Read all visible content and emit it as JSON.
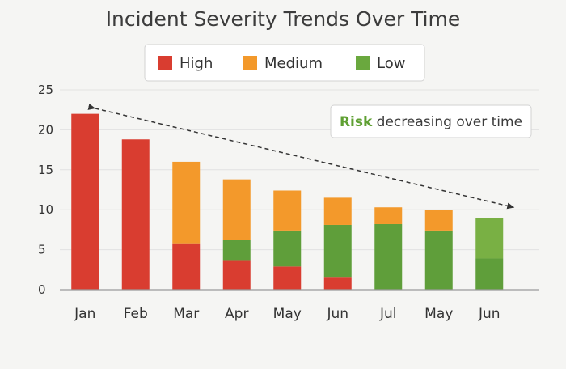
{
  "chart_data": {
    "type": "bar",
    "stacked": true,
    "title": "Incident Severity Trends Over Time",
    "categories": [
      "Jan",
      "Feb",
      "Mar",
      "Apr",
      "May",
      "Jun",
      "Jul",
      "May",
      "Jun"
    ],
    "series": [
      {
        "name": "High",
        "color": "#d93d30",
        "values": [
          22,
          18.8,
          5.8,
          3.7,
          2.9,
          1.6,
          0,
          0,
          0
        ]
      },
      {
        "name": "Low",
        "color": "#5f9e3a",
        "values": [
          0,
          0,
          0,
          2.5,
          4.5,
          6.5,
          8.2,
          7.4,
          3.9
        ]
      },
      {
        "name": "Medium",
        "color": "#f3992b",
        "values": [
          0,
          0,
          10.2,
          7.6,
          5,
          3.4,
          2.1,
          2.6,
          0
        ]
      },
      {
        "name": "Low",
        "color": "#79b044",
        "values": [
          0,
          0,
          0,
          0,
          0,
          0,
          0,
          0,
          5.1
        ]
      }
    ],
    "legend": {
      "placement": "top-center",
      "items": [
        {
          "name": "High",
          "color": "#d93d30"
        },
        {
          "name": "Medium",
          "color": "#f3992b"
        },
        {
          "name": "Low",
          "color": "#6aa83e"
        }
      ]
    },
    "ylim": [
      0,
      25
    ],
    "yticks": [
      0,
      5,
      10,
      15,
      20,
      25
    ],
    "grid": true,
    "xlabel": "",
    "ylabel": "",
    "annotation": {
      "accent": "Risk",
      "text": " decreasing over time",
      "placement": "top-right",
      "trend_arrow": {
        "from": {
          "category": "Jan",
          "y": 23.5
        },
        "to": {
          "category": "Jun",
          "y": 10.3
        }
      }
    }
  }
}
